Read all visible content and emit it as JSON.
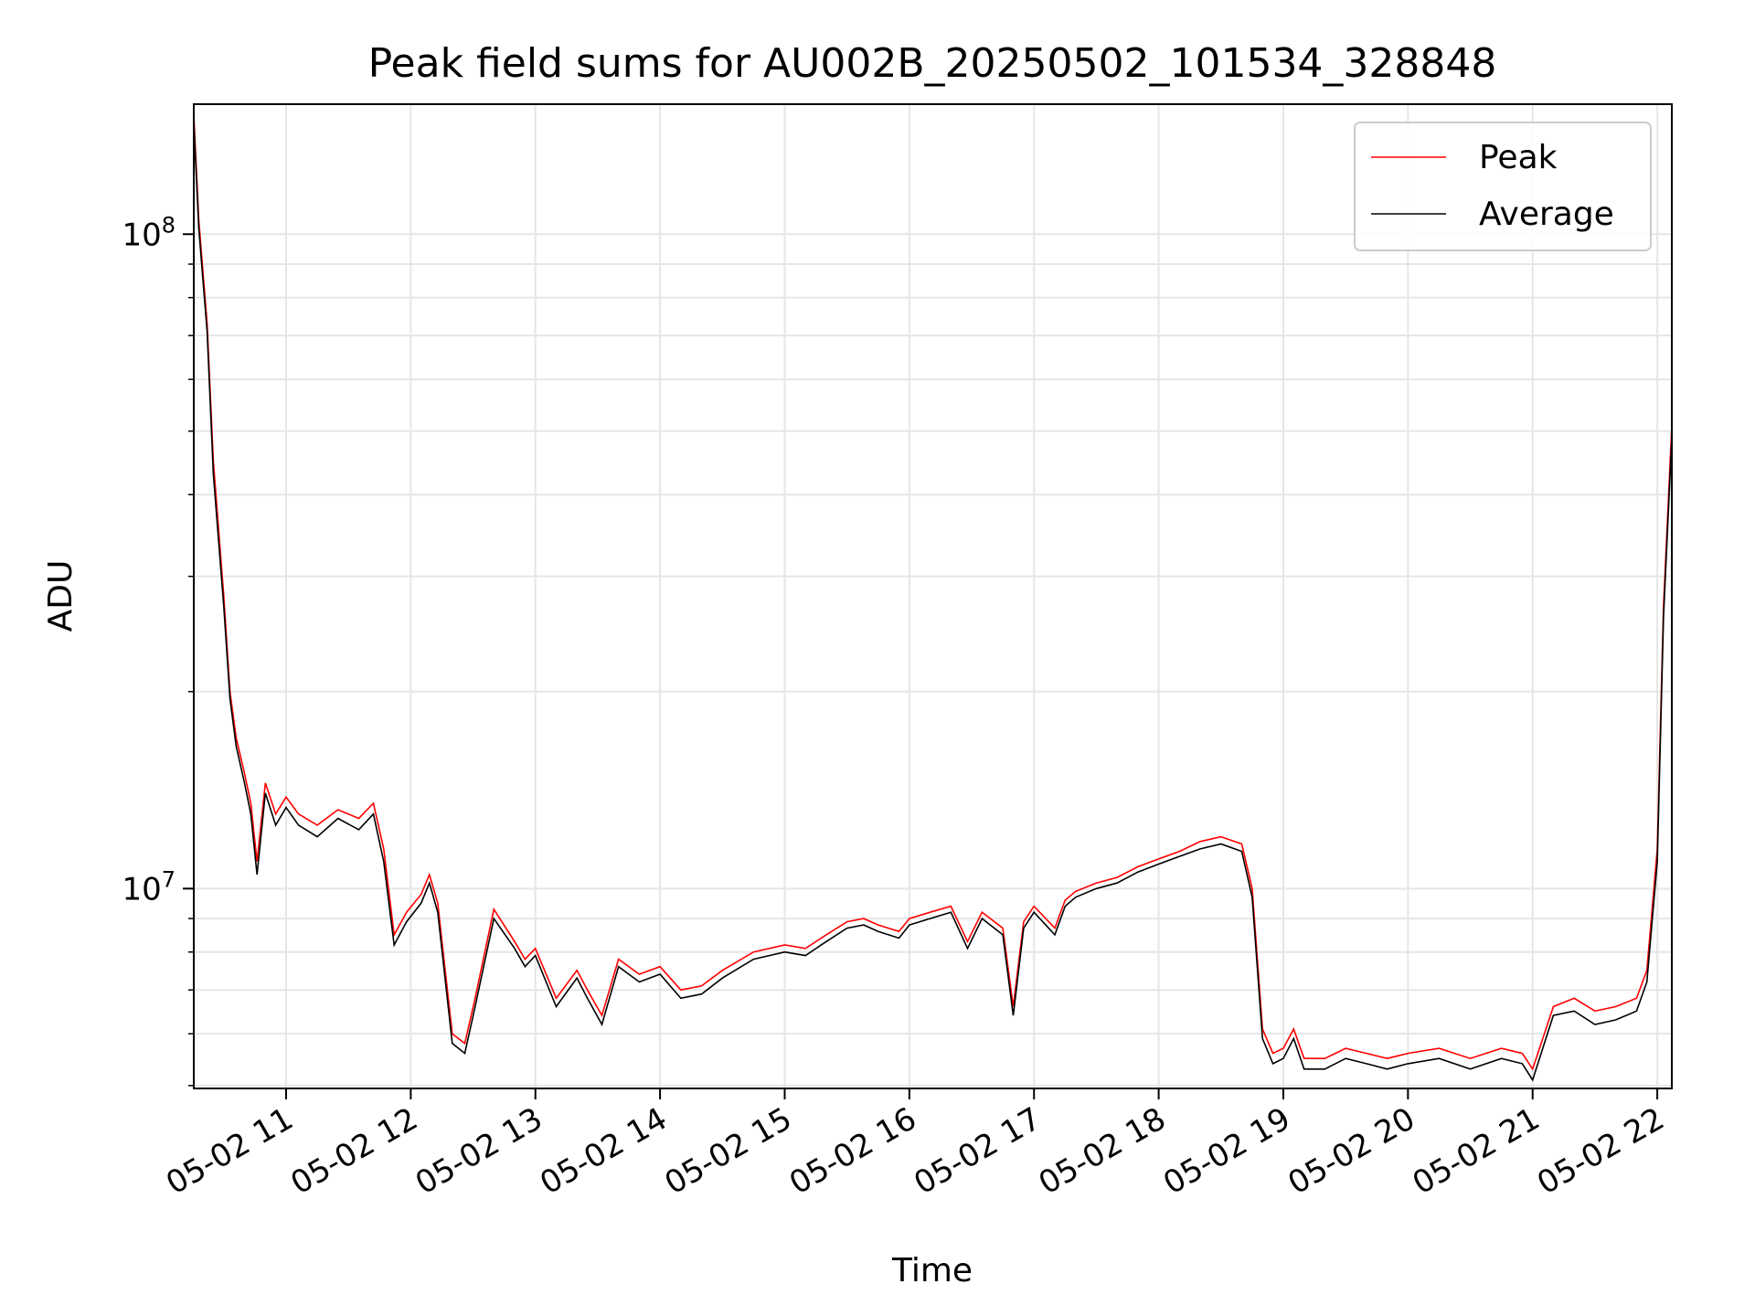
{
  "chart_data": {
    "type": "line",
    "title": "Peak field sums for AU002B_20250502_101534_328848",
    "xlabel": "Time",
    "ylabel": "ADU",
    "y_scale": "log",
    "ylim": [
      4950000,
      158000000
    ],
    "xlim": [
      "2025-05-02 10:15:34",
      "2025-05-02 22:07:00"
    ],
    "grid": true,
    "legend_position": "top-right",
    "x_ticks": [
      {
        "value": "2025-05-02 11:00",
        "label": "05-02 11"
      },
      {
        "value": "2025-05-02 12:00",
        "label": "05-02 12"
      },
      {
        "value": "2025-05-02 13:00",
        "label": "05-02 13"
      },
      {
        "value": "2025-05-02 14:00",
        "label": "05-02 14"
      },
      {
        "value": "2025-05-02 15:00",
        "label": "05-02 15"
      },
      {
        "value": "2025-05-02 16:00",
        "label": "05-02 16"
      },
      {
        "value": "2025-05-02 17:00",
        "label": "05-02 17"
      },
      {
        "value": "2025-05-02 18:00",
        "label": "05-02 18"
      },
      {
        "value": "2025-05-02 19:00",
        "label": "05-02 19"
      },
      {
        "value": "2025-05-02 20:00",
        "label": "05-02 20"
      },
      {
        "value": "2025-05-02 21:00",
        "label": "05-02 21"
      },
      {
        "value": "2025-05-02 22:00",
        "label": "05-02 22"
      }
    ],
    "y_ticks": [
      {
        "value": 10000000,
        "base": "10",
        "exp": "7"
      },
      {
        "value": 100000000,
        "base": "10",
        "exp": "8"
      }
    ],
    "series": [
      {
        "name": "Peak",
        "color": "#ff0000",
        "x": [
          "2025-05-02 10:15:34",
          "2025-05-02 10:18",
          "2025-05-02 10:22",
          "2025-05-02 10:25",
          "2025-05-02 10:30",
          "2025-05-02 10:33",
          "2025-05-02 10:36",
          "2025-05-02 10:40",
          "2025-05-02 10:43",
          "2025-05-02 10:46",
          "2025-05-02 10:50",
          "2025-05-02 10:55",
          "2025-05-02 11:00",
          "2025-05-02 11:06",
          "2025-05-02 11:15",
          "2025-05-02 11:25",
          "2025-05-02 11:35",
          "2025-05-02 11:42",
          "2025-05-02 11:47",
          "2025-05-02 11:52",
          "2025-05-02 11:58",
          "2025-05-02 12:05",
          "2025-05-02 12:09",
          "2025-05-02 12:13",
          "2025-05-02 12:20",
          "2025-05-02 12:26",
          "2025-05-02 12:31",
          "2025-05-02 12:40",
          "2025-05-02 12:50",
          "2025-05-02 12:55",
          "2025-05-02 13:00",
          "2025-05-02 13:10",
          "2025-05-02 13:20",
          "2025-05-02 13:25",
          "2025-05-02 13:32",
          "2025-05-02 13:40",
          "2025-05-02 13:50",
          "2025-05-02 14:00",
          "2025-05-02 14:10",
          "2025-05-02 14:20",
          "2025-05-02 14:30",
          "2025-05-02 14:45",
          "2025-05-02 15:00",
          "2025-05-02 15:10",
          "2025-05-02 15:20",
          "2025-05-02 15:30",
          "2025-05-02 15:38",
          "2025-05-02 15:45",
          "2025-05-02 15:55",
          "2025-05-02 16:00",
          "2025-05-02 16:10",
          "2025-05-02 16:20",
          "2025-05-02 16:28",
          "2025-05-02 16:35",
          "2025-05-02 16:45",
          "2025-05-02 16:50",
          "2025-05-02 16:55",
          "2025-05-02 17:00",
          "2025-05-02 17:10",
          "2025-05-02 17:15",
          "2025-05-02 17:20",
          "2025-05-02 17:30",
          "2025-05-02 17:40",
          "2025-05-02 17:50",
          "2025-05-02 18:00",
          "2025-05-02 18:10",
          "2025-05-02 18:20",
          "2025-05-02 18:30",
          "2025-05-02 18:40",
          "2025-05-02 18:45",
          "2025-05-02 18:50",
          "2025-05-02 18:55",
          "2025-05-02 19:00",
          "2025-05-02 19:05",
          "2025-05-02 19:10",
          "2025-05-02 19:20",
          "2025-05-02 19:30",
          "2025-05-02 19:40",
          "2025-05-02 19:50",
          "2025-05-02 20:00",
          "2025-05-02 20:15",
          "2025-05-02 20:30",
          "2025-05-02 20:45",
          "2025-05-02 20:55",
          "2025-05-02 21:00",
          "2025-05-02 21:10",
          "2025-05-02 21:20",
          "2025-05-02 21:30",
          "2025-05-02 21:40",
          "2025-05-02 21:50",
          "2025-05-02 21:55",
          "2025-05-02 22:00",
          "2025-05-02 22:03",
          "2025-05-02 22:07"
        ],
        "values": [
          152000000,
          105000000,
          73000000,
          45000000,
          28000000,
          20000000,
          17000000,
          15000000,
          13500000,
          11000000,
          14500000,
          13000000,
          13800000,
          13000000,
          12500000,
          13200000,
          12800000,
          13500000,
          11500000,
          8500000,
          9200000,
          9800000,
          10500000,
          9500000,
          6000000,
          5800000,
          6800000,
          9300000,
          8300000,
          7800000,
          8100000,
          6800000,
          7500000,
          7000000,
          6400000,
          7800000,
          7400000,
          7600000,
          7000000,
          7100000,
          7500000,
          8000000,
          8200000,
          8100000,
          8500000,
          8900000,
          9000000,
          8800000,
          8600000,
          9000000,
          9200000,
          9400000,
          8300000,
          9200000,
          8700000,
          6600000,
          8900000,
          9400000,
          8700000,
          9600000,
          9900000,
          10200000,
          10400000,
          10800000,
          11100000,
          11400000,
          11800000,
          12000000,
          11700000,
          10000000,
          6100000,
          5600000,
          5700000,
          6100000,
          5500000,
          5500000,
          5700000,
          5600000,
          5500000,
          5600000,
          5700000,
          5500000,
          5700000,
          5600000,
          5300000,
          6600000,
          6800000,
          6500000,
          6600000,
          6800000,
          7500000,
          11500000,
          27000000,
          51000000
        ]
      },
      {
        "name": "Average",
        "color": "#000000",
        "x": [
          "2025-05-02 10:15:34",
          "2025-05-02 10:18",
          "2025-05-02 10:22",
          "2025-05-02 10:25",
          "2025-05-02 10:30",
          "2025-05-02 10:33",
          "2025-05-02 10:36",
          "2025-05-02 10:40",
          "2025-05-02 10:43",
          "2025-05-02 10:46",
          "2025-05-02 10:50",
          "2025-05-02 10:55",
          "2025-05-02 11:00",
          "2025-05-02 11:06",
          "2025-05-02 11:15",
          "2025-05-02 11:25",
          "2025-05-02 11:35",
          "2025-05-02 11:42",
          "2025-05-02 11:47",
          "2025-05-02 11:52",
          "2025-05-02 11:58",
          "2025-05-02 12:05",
          "2025-05-02 12:09",
          "2025-05-02 12:13",
          "2025-05-02 12:20",
          "2025-05-02 12:26",
          "2025-05-02 12:31",
          "2025-05-02 12:40",
          "2025-05-02 12:50",
          "2025-05-02 12:55",
          "2025-05-02 13:00",
          "2025-05-02 13:10",
          "2025-05-02 13:20",
          "2025-05-02 13:25",
          "2025-05-02 13:32",
          "2025-05-02 13:40",
          "2025-05-02 13:50",
          "2025-05-02 14:00",
          "2025-05-02 14:10",
          "2025-05-02 14:20",
          "2025-05-02 14:30",
          "2025-05-02 14:45",
          "2025-05-02 15:00",
          "2025-05-02 15:10",
          "2025-05-02 15:20",
          "2025-05-02 15:30",
          "2025-05-02 15:38",
          "2025-05-02 15:45",
          "2025-05-02 15:55",
          "2025-05-02 16:00",
          "2025-05-02 16:10",
          "2025-05-02 16:20",
          "2025-05-02 16:28",
          "2025-05-02 16:35",
          "2025-05-02 16:45",
          "2025-05-02 16:50",
          "2025-05-02 16:55",
          "2025-05-02 17:00",
          "2025-05-02 17:10",
          "2025-05-02 17:15",
          "2025-05-02 17:20",
          "2025-05-02 17:30",
          "2025-05-02 17:40",
          "2025-05-02 17:50",
          "2025-05-02 18:00",
          "2025-05-02 18:10",
          "2025-05-02 18:20",
          "2025-05-02 18:30",
          "2025-05-02 18:40",
          "2025-05-02 18:45",
          "2025-05-02 18:50",
          "2025-05-02 18:55",
          "2025-05-02 19:00",
          "2025-05-02 19:05",
          "2025-05-02 19:10",
          "2025-05-02 19:20",
          "2025-05-02 19:30",
          "2025-05-02 19:40",
          "2025-05-02 19:50",
          "2025-05-02 20:00",
          "2025-05-02 20:15",
          "2025-05-02 20:30",
          "2025-05-02 20:45",
          "2025-05-02 20:55",
          "2025-05-02 21:00",
          "2025-05-02 21:10",
          "2025-05-02 21:20",
          "2025-05-02 21:30",
          "2025-05-02 21:40",
          "2025-05-02 21:50",
          "2025-05-02 21:55",
          "2025-05-02 22:00",
          "2025-05-02 22:03",
          "2025-05-02 22:07"
        ],
        "values": [
          148000000,
          102000000,
          71000000,
          43000000,
          27000000,
          19500000,
          16500000,
          14500000,
          13000000,
          10500000,
          14000000,
          12500000,
          13300000,
          12500000,
          12000000,
          12800000,
          12300000,
          13000000,
          11000000,
          8200000,
          8900000,
          9500000,
          10200000,
          9200000,
          5800000,
          5600000,
          6600000,
          9000000,
          8100000,
          7600000,
          7900000,
          6600000,
          7300000,
          6800000,
          6200000,
          7600000,
          7200000,
          7400000,
          6800000,
          6900000,
          7300000,
          7800000,
          8000000,
          7900000,
          8300000,
          8700000,
          8800000,
          8600000,
          8400000,
          8800000,
          9000000,
          9200000,
          8100000,
          9000000,
          8500000,
          6400000,
          8700000,
          9200000,
          8500000,
          9400000,
          9700000,
          10000000,
          10200000,
          10600000,
          10900000,
          11200000,
          11500000,
          11700000,
          11400000,
          9700000,
          5900000,
          5400000,
          5500000,
          5900000,
          5300000,
          5300000,
          5500000,
          5400000,
          5300000,
          5400000,
          5500000,
          5300000,
          5500000,
          5400000,
          5100000,
          6400000,
          6500000,
          6200000,
          6300000,
          6500000,
          7200000,
          11000000,
          26000000,
          49000000
        ]
      }
    ]
  }
}
